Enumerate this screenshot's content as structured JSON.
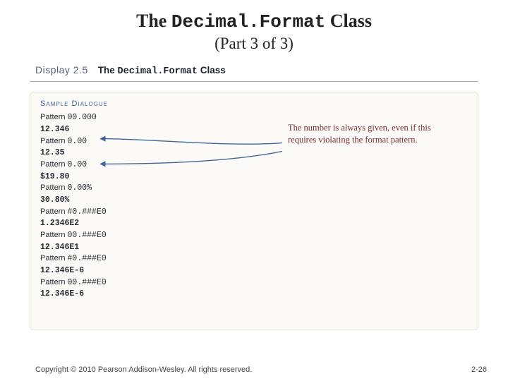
{
  "title": {
    "pre": "The ",
    "code": "Decimal.Format",
    "post": " Class"
  },
  "subtitle": "(Part 3 of 3)",
  "display": {
    "label": "Display 2.5",
    "title_pre": "The ",
    "title_code": "Decimal.Format",
    "title_post": " Class"
  },
  "dialogue": {
    "header": "Sample Dialogue",
    "rows": [
      {
        "label": "Pattern",
        "pattern": "00.000",
        "output": "12.346"
      },
      {
        "label": "Pattern",
        "pattern": "0.00",
        "output": "12.35"
      },
      {
        "label": "Pattern",
        "pattern": "0.00",
        "output": "$19.80"
      },
      {
        "label": "Pattern",
        "pattern": "0.00%",
        "output": "30.80%"
      },
      {
        "label": "Pattern",
        "pattern": "#0.###E0",
        "output": "1.2346E2"
      },
      {
        "label": "Pattern",
        "pattern": "00.###E0",
        "output": "12.346E1"
      },
      {
        "label": "Pattern",
        "pattern": "#0.###E0",
        "output": "12.346E-6"
      },
      {
        "label": "Pattern",
        "pattern": "00.###E0",
        "output": "12.346E-6"
      }
    ],
    "annotation": "The number is always given, even if this requires violating the format pattern."
  },
  "arrows": {
    "stroke": "#3e669a",
    "stroke_width": 1.4,
    "marker_size": 5,
    "paths": [
      "M 358 72 C 280 78, 170 66, 100 66",
      "M 358 84 C 280 100, 170 102, 100 102"
    ]
  },
  "footer": {
    "copyright": "Copyright © 2010 Pearson Addison-Wesley. All rights reserved.",
    "page": "2-26"
  },
  "colors": {
    "accent_blue": "#3e669a",
    "annot_red": "#7a2b2b",
    "rule_gray": "#a9b0c4",
    "card_border": "#e7e3db",
    "card_bg": "#fbfaf7"
  }
}
